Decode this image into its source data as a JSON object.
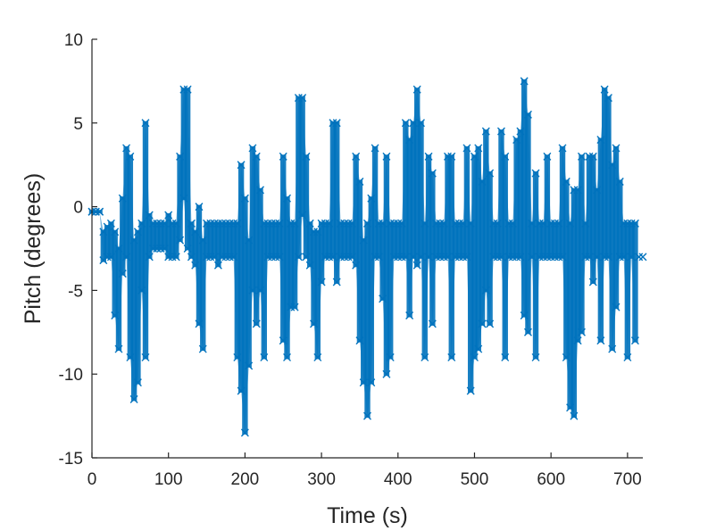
{
  "chart_data": {
    "type": "scatter",
    "title": "",
    "xlabel": "Time (s)",
    "ylabel": "Pitch (degrees)",
    "xlim": [
      0,
      720
    ],
    "ylim": [
      -15,
      10
    ],
    "xticks": [
      0,
      100,
      200,
      300,
      400,
      500,
      600,
      700
    ],
    "yticks": [
      -15,
      -10,
      -5,
      0,
      5,
      10
    ],
    "grid": false,
    "legend": "none",
    "marker": "x",
    "color": "#0072BD",
    "series": [
      {
        "x": [
          0,
          5,
          10,
          15,
          20,
          25,
          30,
          35,
          40,
          45,
          50,
          55,
          60,
          65,
          70,
          75,
          80,
          85,
          90,
          95,
          100,
          105,
          110,
          115,
          120,
          125,
          130,
          135,
          140,
          145,
          150,
          155,
          160,
          165,
          170,
          175,
          180,
          185,
          190,
          195,
          200,
          205,
          210,
          215,
          220,
          225,
          230,
          235,
          240,
          245,
          250,
          255,
          260,
          265,
          270,
          275,
          280,
          285,
          290,
          295,
          300,
          305,
          310,
          315,
          320,
          325,
          330,
          335,
          340,
          345,
          350,
          355,
          360,
          365,
          370,
          375,
          380,
          385,
          390,
          395,
          400,
          405,
          410,
          415,
          420,
          425,
          430,
          435,
          440,
          445,
          450,
          455,
          460,
          465,
          470,
          475,
          480,
          485,
          490,
          495,
          500,
          505,
          510,
          515,
          520,
          525,
          530,
          535,
          540,
          545,
          550,
          555,
          560,
          565,
          570,
          575,
          580,
          585,
          590,
          595,
          600,
          605,
          610,
          615,
          620,
          625,
          630,
          635,
          640,
          645,
          650,
          655,
          660,
          665,
          670,
          675,
          680,
          685,
          690,
          695,
          700,
          705,
          710,
          715,
          720
        ],
        "y_min": [
          -0.3,
          -0.3,
          -0.3,
          -3.2,
          -3.0,
          -3.0,
          -6.5,
          -8.5,
          -4.0,
          -3.0,
          -9.0,
          -11.5,
          -10.5,
          -5.0,
          -9.0,
          -3.0,
          -2.5,
          -2.5,
          -2.5,
          -2.5,
          -3.0,
          -3.0,
          -3.0,
          -2.0,
          0.5,
          -2.5,
          -3.0,
          -3.5,
          -7.0,
          -8.5,
          -3.0,
          -3.0,
          -3.0,
          -3.5,
          -3.0,
          -3.0,
          -3.0,
          -3.0,
          -9.0,
          -11.0,
          -13.5,
          -9.5,
          -5.0,
          -7.0,
          -5.0,
          -9.0,
          -3.0,
          -3.0,
          -3.0,
          -3.0,
          -8.0,
          -9.0,
          -6.0,
          -6.0,
          -3.0,
          -0.5,
          -3.0,
          -3.5,
          -7.0,
          -9.0,
          -4.5,
          -3.0,
          -3.0,
          -3.0,
          -4.5,
          -3.0,
          -3.0,
          -3.0,
          -3.0,
          -3.5,
          -8.0,
          -10.5,
          -12.5,
          -10.5,
          -3.0,
          -3.0,
          -5.5,
          -10.0,
          -9.0,
          -3.0,
          -3.0,
          -3.0,
          -3.0,
          -6.5,
          -3.0,
          -3.5,
          -3.0,
          -9.0,
          -3.0,
          -7.0,
          -3.0,
          -3.0,
          -3.0,
          -3.0,
          -9.0,
          -3.0,
          -3.0,
          -3.0,
          -3.0,
          -11.0,
          -9.0,
          -8.5,
          -7.0,
          -5.0,
          -7.0,
          -3.0,
          -3.0,
          -3.0,
          -9.0,
          -3.0,
          -3.0,
          -3.0,
          -3.0,
          -6.5,
          -7.5,
          -3.0,
          -9.0,
          -3.0,
          -3.0,
          -3.0,
          -3.0,
          -3.0,
          -3.0,
          -3.0,
          -9.0,
          -12.0,
          -12.5,
          -8.0,
          -7.5,
          -3.0,
          -3.0,
          -4.5,
          -3.0,
          -8.0,
          -3.0,
          -3.0,
          -8.5,
          -6.0,
          -3.0,
          -3.0,
          -9.0,
          -3.0,
          -8.0,
          -3.0,
          -3.0
        ],
        "y_max": [
          -0.3,
          -0.3,
          -0.3,
          -1.5,
          -1.2,
          -1.0,
          -1.5,
          -2.5,
          0.5,
          3.5,
          3.0,
          -2.0,
          -1.5,
          -1.0,
          5.0,
          -0.5,
          -1.0,
          -1.0,
          -1.0,
          -1.0,
          -0.5,
          -1.0,
          -1.0,
          3.0,
          7.0,
          7.0,
          -1.0,
          -1.5,
          0.0,
          -2.0,
          -1.0,
          -1.0,
          -1.0,
          -1.0,
          -1.0,
          -1.0,
          -1.0,
          -1.0,
          -1.0,
          2.5,
          0.5,
          -2.0,
          3.5,
          3.0,
          1.0,
          -1.0,
          -1.0,
          -1.0,
          -1.0,
          -1.0,
          3.0,
          0.5,
          -1.0,
          -1.0,
          6.5,
          6.5,
          3.0,
          -1.0,
          -1.5,
          -1.5,
          -1.0,
          -1.0,
          -1.0,
          5.0,
          5.0,
          -1.0,
          -1.0,
          -1.0,
          -1.0,
          3.0,
          1.5,
          -2.0,
          -1.0,
          0.5,
          3.5,
          -1.0,
          -1.0,
          3.0,
          -1.0,
          -1.0,
          -1.0,
          -1.0,
          5.0,
          4.0,
          5.0,
          7.0,
          5.0,
          -1.0,
          3.0,
          2.0,
          -1.0,
          -1.0,
          -1.0,
          3.0,
          3.0,
          -1.0,
          -1.0,
          -1.0,
          3.5,
          -1.0,
          3.0,
          3.5,
          1.5,
          4.5,
          2.0,
          -1.0,
          -1.0,
          4.5,
          3.0,
          -1.0,
          -1.0,
          4.0,
          4.5,
          7.5,
          5.5,
          -1.0,
          2.0,
          -1.0,
          -1.0,
          3.0,
          -1.0,
          -1.0,
          -1.0,
          3.5,
          1.5,
          -1.0,
          1.0,
          1.0,
          3.0,
          -1.0,
          3.0,
          3.0,
          1.0,
          4.0,
          7.0,
          6.5,
          2.5,
          3.5,
          1.5,
          -1.0,
          -1.0,
          -1.0,
          -1.0
        ]
      }
    ]
  }
}
